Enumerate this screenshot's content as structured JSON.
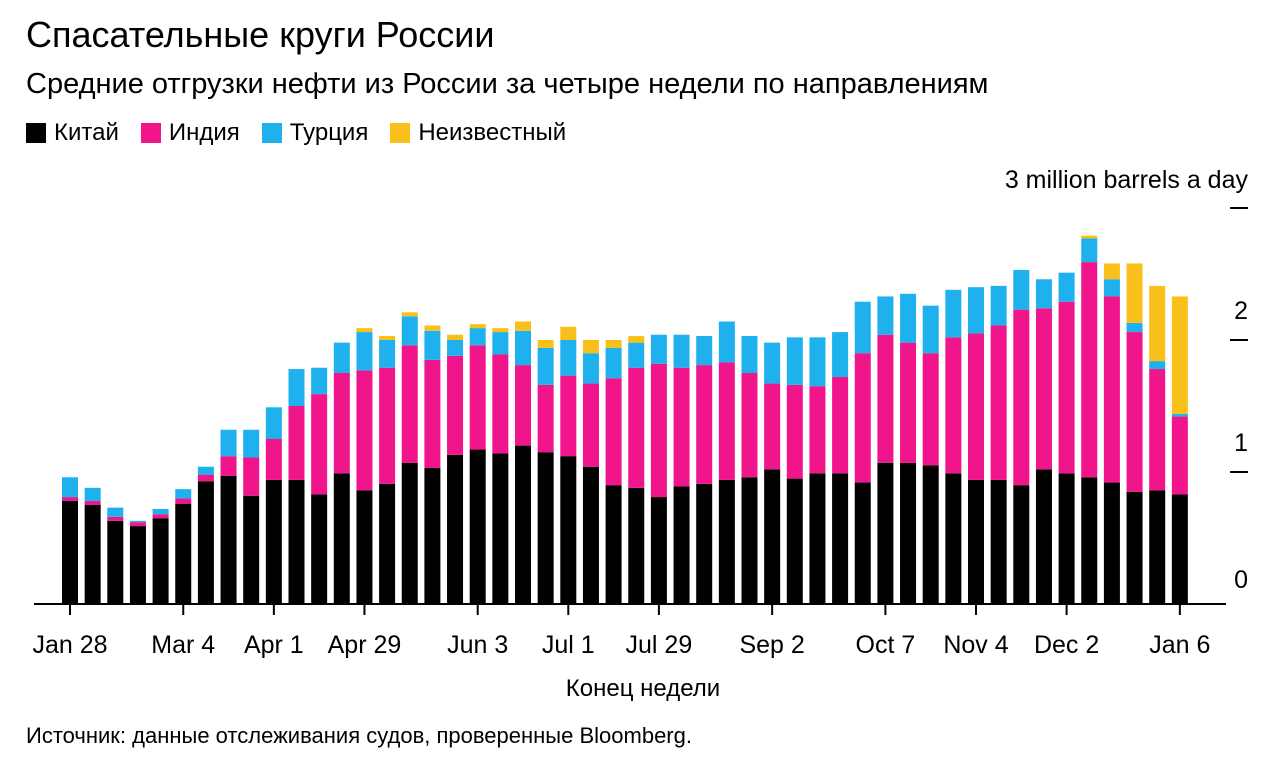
{
  "title": "Спасательные круги России",
  "subtitle": "Средние отгрузки нефти из России за четыре недели по направлениям",
  "source": "Источник: данные отслеживания судов, проверенные Bloomberg.",
  "chart_data": {
    "type": "bar",
    "stacked": true,
    "unit_label": "3 million barrels a day",
    "xlabel": "Конец недели",
    "ylim": [
      0,
      3
    ],
    "y_ticks": [
      {
        "value": 0,
        "label": "0"
      },
      {
        "value": 1,
        "label": "1"
      },
      {
        "value": 2,
        "label": "2"
      },
      {
        "value": 3,
        "label": ""
      }
    ],
    "x_ticks": [
      {
        "index": 0,
        "label": "Jan 28"
      },
      {
        "index": 5,
        "label": "Mar 4"
      },
      {
        "index": 9,
        "label": "Apr 1"
      },
      {
        "index": 13,
        "label": "Apr 29"
      },
      {
        "index": 18,
        "label": "Jun 3"
      },
      {
        "index": 22,
        "label": "Jul 1"
      },
      {
        "index": 26,
        "label": "Jul 29"
      },
      {
        "index": 31,
        "label": "Sep 2"
      },
      {
        "index": 36,
        "label": "Oct 7"
      },
      {
        "index": 40,
        "label": "Nov 4"
      },
      {
        "index": 44,
        "label": "Dec 2"
      },
      {
        "index": 49,
        "label": "Jan 6"
      }
    ],
    "legend_position": "top-left",
    "grid": false,
    "series": [
      {
        "name": "Китай",
        "color": "#000000",
        "values": [
          0.78,
          0.75,
          0.63,
          0.59,
          0.65,
          0.76,
          0.93,
          0.97,
          0.82,
          0.94,
          0.94,
          0.83,
          0.99,
          0.86,
          0.91,
          1.07,
          1.03,
          1.13,
          1.17,
          1.14,
          1.2,
          1.15,
          1.12,
          1.04,
          0.9,
          0.88,
          0.81,
          0.89,
          0.91,
          0.94,
          0.96,
          1.02,
          0.95,
          0.99,
          0.99,
          0.92,
          1.07,
          1.07,
          1.05,
          0.99,
          0.94,
          0.94,
          0.9,
          1.02,
          0.99,
          0.96,
          0.92,
          0.85,
          0.86,
          0.83
        ]
      },
      {
        "name": "Индия",
        "color": "#f0158a",
        "values": [
          0.03,
          0.03,
          0.03,
          0.03,
          0.03,
          0.04,
          0.05,
          0.15,
          0.29,
          0.31,
          0.56,
          0.76,
          0.76,
          0.91,
          0.88,
          0.89,
          0.82,
          0.75,
          0.79,
          0.75,
          0.61,
          0.51,
          0.61,
          0.63,
          0.81,
          0.91,
          1.01,
          0.9,
          0.9,
          0.89,
          0.79,
          0.65,
          0.71,
          0.66,
          0.73,
          0.98,
          0.97,
          0.91,
          0.85,
          1.03,
          1.11,
          1.17,
          1.33,
          1.22,
          1.3,
          1.63,
          1.41,
          1.21,
          0.92,
          0.59
        ]
      },
      {
        "name": "Турция",
        "color": "#1fb0ee",
        "values": [
          0.15,
          0.1,
          0.07,
          0.01,
          0.04,
          0.07,
          0.06,
          0.2,
          0.21,
          0.24,
          0.28,
          0.2,
          0.23,
          0.29,
          0.21,
          0.22,
          0.22,
          0.12,
          0.13,
          0.17,
          0.26,
          0.28,
          0.27,
          0.23,
          0.23,
          0.19,
          0.22,
          0.25,
          0.22,
          0.31,
          0.28,
          0.31,
          0.36,
          0.37,
          0.34,
          0.39,
          0.29,
          0.37,
          0.36,
          0.36,
          0.35,
          0.3,
          0.3,
          0.22,
          0.22,
          0.18,
          0.13,
          0.07,
          0.06,
          0.02
        ]
      },
      {
        "name": "Неизвестный",
        "color": "#f9c01b",
        "values": [
          0,
          0,
          0,
          0,
          0,
          0,
          0,
          0,
          0,
          0,
          0,
          0,
          0,
          0.03,
          0.03,
          0.03,
          0.04,
          0.04,
          0.03,
          0.03,
          0.07,
          0.06,
          0.1,
          0.1,
          0.06,
          0.05,
          0,
          0,
          0,
          0,
          0,
          0,
          0,
          0,
          0,
          0,
          0,
          0,
          0,
          0,
          0,
          0,
          0,
          0,
          0,
          0.02,
          0.12,
          0.45,
          0.57,
          0.89
        ]
      }
    ]
  }
}
